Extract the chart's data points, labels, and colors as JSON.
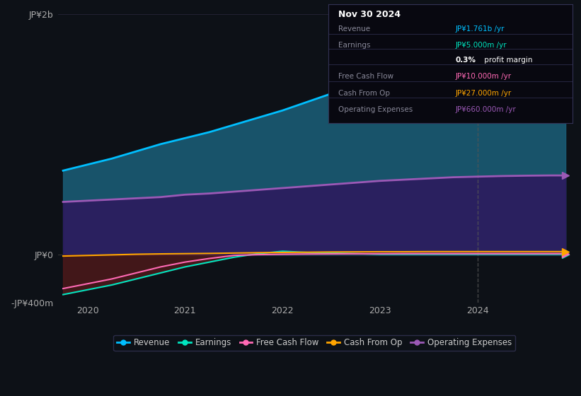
{
  "background_color": "#0d1117",
  "plot_bg_color": "#0d1117",
  "title": "Nov 30 2024",
  "years": [
    2019.75,
    2020.0,
    2020.25,
    2020.5,
    2020.75,
    2021.0,
    2021.25,
    2021.5,
    2021.75,
    2022.0,
    2022.25,
    2022.5,
    2022.75,
    2023.0,
    2023.25,
    2023.5,
    2023.75,
    2024.0,
    2024.25,
    2024.5,
    2024.75,
    2024.9
  ],
  "revenue": [
    700,
    750,
    800,
    860,
    920,
    970,
    1020,
    1080,
    1140,
    1200,
    1270,
    1340,
    1420,
    1490,
    1560,
    1620,
    1680,
    1720,
    1740,
    1755,
    1761,
    1761
  ],
  "earnings": [
    -330,
    -290,
    -250,
    -200,
    -150,
    -100,
    -60,
    -20,
    10,
    30,
    20,
    15,
    10,
    5,
    5,
    5,
    5,
    5,
    5,
    5,
    5,
    5
  ],
  "free_cash_flow": [
    -280,
    -240,
    -200,
    -150,
    -100,
    -60,
    -30,
    -5,
    2,
    5,
    7,
    8,
    9,
    9,
    10,
    10,
    10,
    10,
    10,
    10,
    10,
    10
  ],
  "cash_from_op": [
    -10,
    -5,
    0,
    5,
    8,
    10,
    12,
    15,
    18,
    20,
    22,
    24,
    25,
    26,
    26,
    27,
    27,
    27,
    27,
    27,
    27,
    27
  ],
  "operating_expenses": [
    440,
    450,
    460,
    470,
    480,
    500,
    510,
    525,
    540,
    555,
    570,
    585,
    600,
    615,
    625,
    635,
    645,
    650,
    655,
    658,
    660,
    660
  ],
  "ylim": [
    -400,
    2000
  ],
  "yticks_labels": [
    "JP¥2b",
    "JP¥0",
    "-JP¥400m"
  ],
  "yticks_values": [
    2000,
    0,
    -400
  ],
  "xlabel_ticks": [
    2020,
    2021,
    2022,
    2023,
    2024
  ],
  "revenue_color": "#00bfff",
  "earnings_color": "#00e5c0",
  "free_cash_flow_color": "#ff69b4",
  "cash_from_op_color": "#ffa500",
  "op_expenses_color": "#9b59b6",
  "revenue_fill_color": "#1a5f7a",
  "op_expenses_fill_color": "#2d1b5e",
  "info_box": {
    "title": "Nov 30 2024",
    "rows": [
      {
        "label": "Revenue",
        "value": "JP¥1.761b /yr",
        "value_color": "#00bfff"
      },
      {
        "label": "Earnings",
        "value": "JP¥5.000m /yr",
        "value_color": "#00e5c0"
      },
      {
        "label": "",
        "value": "0.3% profit margin",
        "value_color": "#ffffff"
      },
      {
        "label": "Free Cash Flow",
        "value": "JP¥10.000m /yr",
        "value_color": "#ff69b4"
      },
      {
        "label": "Cash From Op",
        "value": "JP¥27.000m /yr",
        "value_color": "#ffa500"
      },
      {
        "label": "Operating Expenses",
        "value": "JP¥660.000m /yr",
        "value_color": "#9b59b6"
      }
    ]
  },
  "legend_items": [
    {
      "label": "Revenue",
      "color": "#00bfff"
    },
    {
      "label": "Earnings",
      "color": "#00e5c0"
    },
    {
      "label": "Free Cash Flow",
      "color": "#ff69b4"
    },
    {
      "label": "Cash From Op",
      "color": "#ffa500"
    },
    {
      "label": "Operating Expenses",
      "color": "#9b59b6"
    }
  ],
  "vertical_line_x": 2024.0
}
